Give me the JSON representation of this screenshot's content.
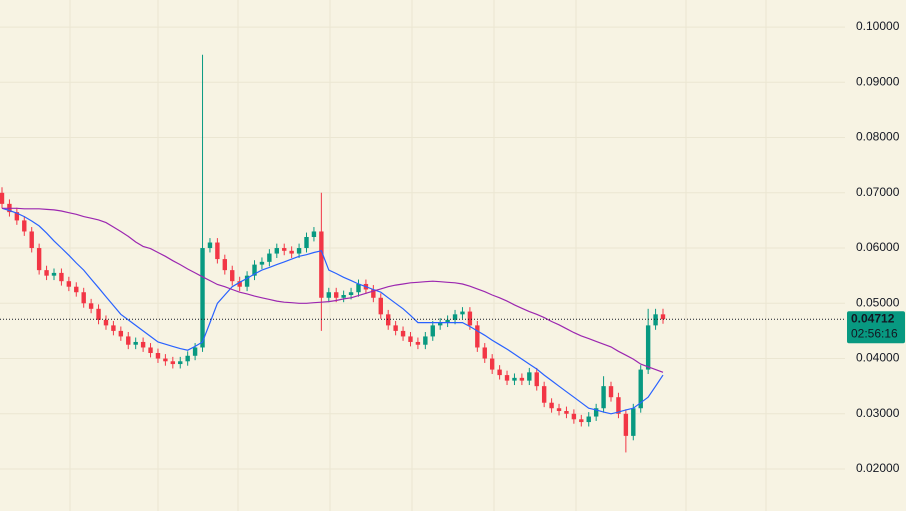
{
  "chart_data": {
    "type": "candlestick",
    "ylim": [
      0.0124,
      0.1049
    ],
    "yticks": [
      {
        "value": 0.02,
        "label": "0.02000"
      },
      {
        "value": 0.03,
        "label": "0.03000"
      },
      {
        "value": 0.04,
        "label": "0.04000"
      },
      {
        "value": 0.05,
        "label": "0.05000"
      },
      {
        "value": 0.06,
        "label": "0.06000"
      },
      {
        "value": 0.07,
        "label": "0.07000"
      },
      {
        "value": 0.08,
        "label": "0.08000"
      },
      {
        "value": 0.09,
        "label": "0.09000"
      },
      {
        "value": 0.1,
        "label": "0.10000"
      }
    ],
    "grid": true,
    "up_color": "#089981",
    "down_color": "#f23645",
    "last_price": 0.04712,
    "countdown": "02:56:16",
    "open": [
      0.07,
      0.068,
      0.0665,
      0.065,
      0.063,
      0.06,
      0.056,
      0.055,
      0.0555,
      0.054,
      0.053,
      0.052,
      0.05,
      0.049,
      0.047,
      0.046,
      0.045,
      0.044,
      0.0425,
      0.043,
      0.042,
      0.041,
      0.04,
      0.0395,
      0.039,
      0.0395,
      0.0405,
      0.042,
      0.06,
      0.061,
      0.058,
      0.056,
      0.054,
      0.053,
      0.055,
      0.057,
      0.0575,
      0.059,
      0.06,
      0.0595,
      0.059,
      0.06,
      0.062,
      0.063,
      0.051,
      0.052,
      0.051,
      0.0515,
      0.052,
      0.0535,
      0.0525,
      0.051,
      0.048,
      0.046,
      0.045,
      0.044,
      0.043,
      0.0425,
      0.044,
      0.046,
      0.0465,
      0.047,
      0.048,
      0.0485,
      0.046,
      0.042,
      0.04,
      0.038,
      0.037,
      0.036,
      0.0365,
      0.036,
      0.0375,
      0.035,
      0.032,
      0.031,
      0.0305,
      0.03,
      0.029,
      0.0285,
      0.0295,
      0.031,
      0.035,
      0.033,
      0.03,
      0.026,
      0.031,
      0.038,
      0.046,
      0.048
    ],
    "high": [
      0.071,
      0.0688,
      0.0673,
      0.0658,
      0.0638,
      0.0608,
      0.0568,
      0.0563,
      0.0563,
      0.0548,
      0.0538,
      0.0528,
      0.0508,
      0.0498,
      0.0478,
      0.0468,
      0.0458,
      0.0448,
      0.0438,
      0.0438,
      0.0428,
      0.0418,
      0.0408,
      0.0403,
      0.0403,
      0.0413,
      0.0428,
      0.095,
      0.0618,
      0.0618,
      0.0588,
      0.0568,
      0.0548,
      0.0558,
      0.0578,
      0.0583,
      0.0598,
      0.0608,
      0.0608,
      0.0603,
      0.0608,
      0.0628,
      0.0638,
      0.07,
      0.0528,
      0.0528,
      0.0523,
      0.0528,
      0.0543,
      0.0543,
      0.0533,
      0.0518,
      0.0488,
      0.0468,
      0.0458,
      0.0448,
      0.0438,
      0.0448,
      0.0468,
      0.0473,
      0.0478,
      0.0488,
      0.0493,
      0.0493,
      0.0468,
      0.0428,
      0.0408,
      0.0388,
      0.0378,
      0.0373,
      0.0373,
      0.0383,
      0.0383,
      0.0358,
      0.0328,
      0.0318,
      0.0313,
      0.0308,
      0.0298,
      0.0303,
      0.0318,
      0.0368,
      0.0358,
      0.0338,
      0.0308,
      0.0318,
      0.0388,
      0.049,
      0.049,
      0.049
    ],
    "low": [
      0.0672,
      0.0657,
      0.0642,
      0.0622,
      0.0592,
      0.0552,
      0.0542,
      0.0542,
      0.0532,
      0.0522,
      0.0512,
      0.0492,
      0.0482,
      0.0462,
      0.0452,
      0.0442,
      0.0432,
      0.0417,
      0.0417,
      0.0412,
      0.0402,
      0.0392,
      0.0387,
      0.0382,
      0.0382,
      0.0387,
      0.0397,
      0.0412,
      0.0592,
      0.0572,
      0.0552,
      0.0532,
      0.0522,
      0.0522,
      0.0542,
      0.0562,
      0.0567,
      0.0582,
      0.0587,
      0.0582,
      0.0582,
      0.0592,
      0.0612,
      0.045,
      0.0502,
      0.0502,
      0.0502,
      0.0507,
      0.0512,
      0.0517,
      0.0502,
      0.0472,
      0.0452,
      0.0442,
      0.0432,
      0.0422,
      0.0417,
      0.0417,
      0.0432,
      0.0452,
      0.0457,
      0.0462,
      0.0472,
      0.0452,
      0.0412,
      0.0392,
      0.0372,
      0.0362,
      0.0352,
      0.0352,
      0.0352,
      0.0352,
      0.0342,
      0.0312,
      0.0302,
      0.0297,
      0.0292,
      0.0282,
      0.0277,
      0.0277,
      0.0287,
      0.0302,
      0.0322,
      0.0292,
      0.023,
      0.0252,
      0.0302,
      0.0372,
      0.0452,
      0.0463
    ],
    "close": [
      0.068,
      0.0665,
      0.065,
      0.063,
      0.06,
      0.056,
      0.055,
      0.0555,
      0.054,
      0.053,
      0.052,
      0.05,
      0.049,
      0.047,
      0.046,
      0.045,
      0.044,
      0.0425,
      0.043,
      0.042,
      0.041,
      0.04,
      0.0395,
      0.039,
      0.0395,
      0.0405,
      0.042,
      0.06,
      0.061,
      0.058,
      0.056,
      0.054,
      0.053,
      0.055,
      0.057,
      0.0575,
      0.059,
      0.06,
      0.0595,
      0.059,
      0.06,
      0.062,
      0.063,
      0.051,
      0.052,
      0.051,
      0.0515,
      0.052,
      0.0535,
      0.0525,
      0.051,
      0.048,
      0.046,
      0.045,
      0.044,
      0.043,
      0.0425,
      0.044,
      0.046,
      0.0465,
      0.047,
      0.048,
      0.0485,
      0.046,
      0.042,
      0.04,
      0.038,
      0.037,
      0.036,
      0.0365,
      0.036,
      0.0375,
      0.035,
      0.032,
      0.031,
      0.0305,
      0.03,
      0.029,
      0.0285,
      0.0295,
      0.031,
      0.035,
      0.033,
      0.03,
      0.026,
      0.031,
      0.038,
      0.046,
      0.048,
      0.04712
    ],
    "series": [
      {
        "color": "#2962ff",
        "values": [
          0.0672,
          0.0668,
          0.0663,
          0.0657,
          0.0649,
          0.064,
          0.0627,
          0.0613,
          0.06,
          0.0587,
          0.0573,
          0.056,
          0.0544,
          0.0528,
          0.0512,
          0.0496,
          0.048,
          0.047,
          0.046,
          0.045,
          0.044,
          0.043,
          0.0426,
          0.0422,
          0.0418,
          0.0415,
          0.0422,
          0.043,
          0.0465,
          0.05,
          0.0515,
          0.053,
          0.0538,
          0.0545,
          0.0553,
          0.056,
          0.0565,
          0.057,
          0.0575,
          0.058,
          0.0585,
          0.0588,
          0.0592,
          0.0595,
          0.056,
          0.0554,
          0.0547,
          0.0541,
          0.0535,
          0.053,
          0.0525,
          0.052,
          0.051,
          0.05,
          0.049,
          0.0478,
          0.0465,
          0.0465,
          0.0465,
          0.0465,
          0.0465,
          0.0465,
          0.0465,
          0.0458,
          0.045,
          0.0442,
          0.0433,
          0.0425,
          0.0417,
          0.0408,
          0.0399,
          0.039,
          0.0381,
          0.037,
          0.036,
          0.035,
          0.034,
          0.033,
          0.032,
          0.031,
          0.0307,
          0.0303,
          0.03,
          0.0303,
          0.0307,
          0.031,
          0.032,
          0.033,
          0.035,
          0.037
        ]
      },
      {
        "color": "#9c27b0",
        "values": [
          0.0672,
          0.0672,
          0.0672,
          0.0671,
          0.0671,
          0.0671,
          0.067,
          0.0669,
          0.0667,
          0.0664,
          0.0661,
          0.0657,
          0.0654,
          0.0651,
          0.0646,
          0.0638,
          0.063,
          0.0621,
          0.0611,
          0.0603,
          0.0599,
          0.0592,
          0.0585,
          0.0577,
          0.057,
          0.0562,
          0.0555,
          0.0548,
          0.0541,
          0.0534,
          0.053,
          0.0525,
          0.052,
          0.0517,
          0.0513,
          0.051,
          0.0507,
          0.0504,
          0.0502,
          0.0501,
          0.05,
          0.05,
          0.0501,
          0.0502,
          0.0503,
          0.0505,
          0.0508,
          0.051,
          0.0514,
          0.0518,
          0.0522,
          0.0526,
          0.053,
          0.0533,
          0.0535,
          0.0537,
          0.0538,
          0.0539,
          0.054,
          0.0539,
          0.0538,
          0.0537,
          0.0535,
          0.0531,
          0.0526,
          0.0521,
          0.0515,
          0.051,
          0.0504,
          0.0497,
          0.0491,
          0.0485,
          0.048,
          0.0474,
          0.0467,
          0.0461,
          0.0454,
          0.0447,
          0.0441,
          0.0436,
          0.0431,
          0.0426,
          0.0421,
          0.0413,
          0.0406,
          0.0399,
          0.039,
          0.0385,
          0.038,
          0.0375
        ]
      }
    ]
  }
}
